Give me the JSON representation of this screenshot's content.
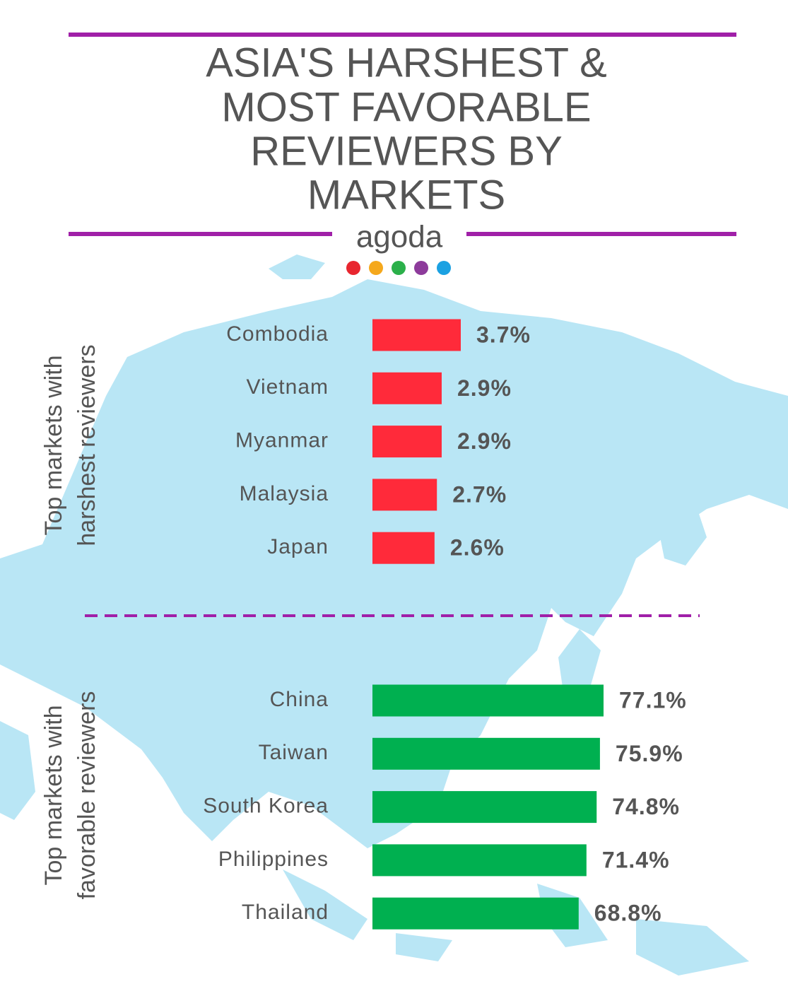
{
  "title": [
    "ASIA'S HARSHEST &",
    "MOST FAVORABLE",
    "REVIEWERS BY",
    "MARKETS"
  ],
  "brand": "agoda",
  "chart_data": [
    {
      "type": "bar",
      "orientation": "horizontal",
      "ylabel": [
        "Top markets with",
        "harshest reviewers"
      ],
      "categories": [
        "Combodia",
        "Vietnam",
        "Myanmar",
        "Malaysia",
        "Japan"
      ],
      "values": [
        3.7,
        2.9,
        2.9,
        2.7,
        2.6
      ],
      "value_labels": [
        "3.7%",
        "2.9%",
        "2.9%",
        "2.7%",
        "2.6%"
      ],
      "color": "#ff2a3a"
    },
    {
      "type": "bar",
      "orientation": "horizontal",
      "ylabel": [
        "Top markets with",
        "favorable  reviewers"
      ],
      "categories": [
        "China",
        "Taiwan",
        "South Korea",
        "Philippines",
        "Thailand"
      ],
      "values": [
        77.1,
        75.9,
        74.8,
        71.4,
        68.8
      ],
      "value_labels": [
        "77.1%",
        "75.9%",
        "74.8%",
        "71.4%",
        "68.8%"
      ],
      "color": "#00b050"
    }
  ]
}
